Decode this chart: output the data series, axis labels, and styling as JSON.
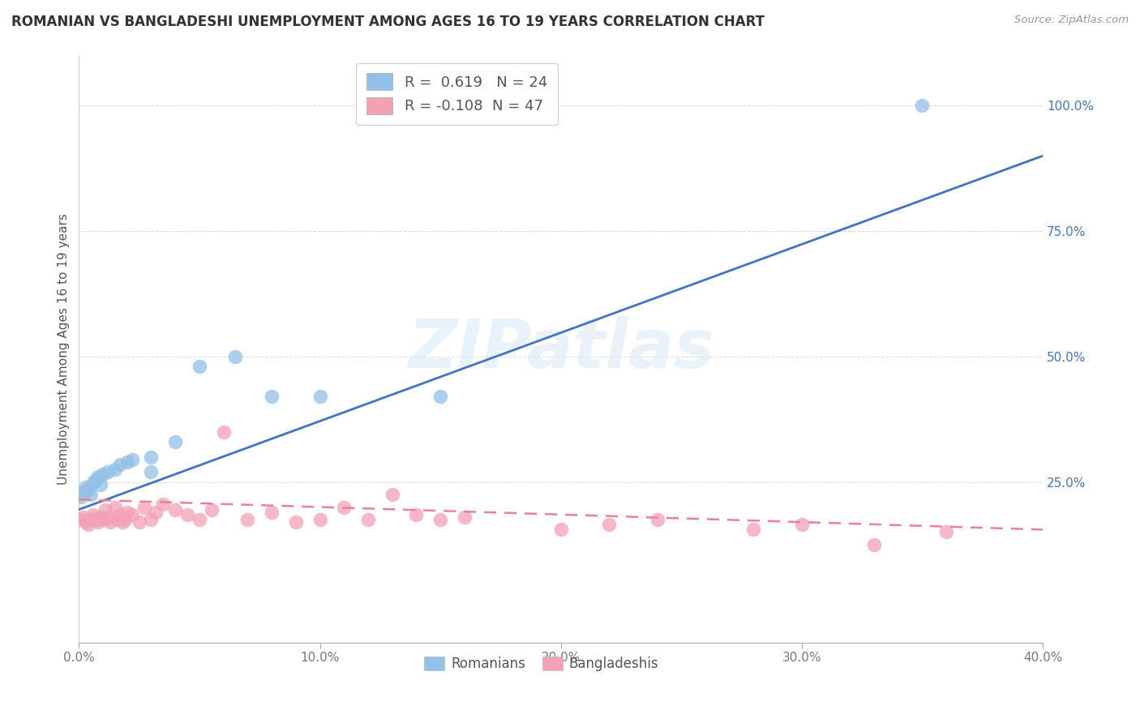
{
  "title": "ROMANIAN VS BANGLADESHI UNEMPLOYMENT AMONG AGES 16 TO 19 YEARS CORRELATION CHART",
  "source": "Source: ZipAtlas.com",
  "ylabel": "Unemployment Among Ages 16 to 19 years",
  "xlim": [
    0.0,
    0.4
  ],
  "ylim": [
    -0.07,
    1.1
  ],
  "romanian_R": 0.619,
  "romanian_N": 24,
  "bangladeshi_R": -0.108,
  "bangladeshi_N": 47,
  "romanian_color": "#92C0E8",
  "bangladeshi_color": "#F4A0B5",
  "romanian_line_color": "#4472C4",
  "bangladeshi_line_color": "#E88098",
  "rom_line_x0": 0.0,
  "rom_line_y0": 0.195,
  "rom_line_x1": 0.4,
  "rom_line_y1": 0.9,
  "ban_line_x0": 0.0,
  "ban_line_y0": 0.215,
  "ban_line_x1": 0.4,
  "ban_line_y1": 0.155,
  "romanian_x": [
    0.001,
    0.002,
    0.003,
    0.004,
    0.005,
    0.006,
    0.007,
    0.008,
    0.009,
    0.01,
    0.012,
    0.015,
    0.017,
    0.02,
    0.022,
    0.03,
    0.04,
    0.05,
    0.065,
    0.08,
    0.1,
    0.15,
    0.03,
    0.35
  ],
  "romanian_y": [
    0.22,
    0.23,
    0.24,
    0.235,
    0.225,
    0.25,
    0.255,
    0.26,
    0.245,
    0.265,
    0.27,
    0.275,
    0.285,
    0.29,
    0.295,
    0.3,
    0.33,
    0.48,
    0.5,
    0.42,
    0.42,
    0.42,
    0.27,
    1.0
  ],
  "bangladeshi_x": [
    0.001,
    0.002,
    0.003,
    0.004,
    0.005,
    0.006,
    0.007,
    0.008,
    0.009,
    0.01,
    0.011,
    0.012,
    0.013,
    0.015,
    0.016,
    0.017,
    0.018,
    0.019,
    0.02,
    0.022,
    0.025,
    0.027,
    0.03,
    0.032,
    0.035,
    0.04,
    0.045,
    0.05,
    0.055,
    0.06,
    0.07,
    0.08,
    0.09,
    0.1,
    0.11,
    0.12,
    0.13,
    0.14,
    0.15,
    0.16,
    0.2,
    0.22,
    0.24,
    0.28,
    0.3,
    0.33,
    0.36
  ],
  "bangladeshi_y": [
    0.175,
    0.18,
    0.17,
    0.165,
    0.175,
    0.185,
    0.175,
    0.17,
    0.18,
    0.175,
    0.195,
    0.18,
    0.17,
    0.2,
    0.175,
    0.185,
    0.17,
    0.175,
    0.19,
    0.185,
    0.17,
    0.2,
    0.175,
    0.19,
    0.205,
    0.195,
    0.185,
    0.175,
    0.195,
    0.35,
    0.175,
    0.19,
    0.17,
    0.175,
    0.2,
    0.175,
    0.225,
    0.185,
    0.175,
    0.18,
    0.155,
    0.165,
    0.175,
    0.155,
    0.165,
    0.125,
    0.15
  ]
}
